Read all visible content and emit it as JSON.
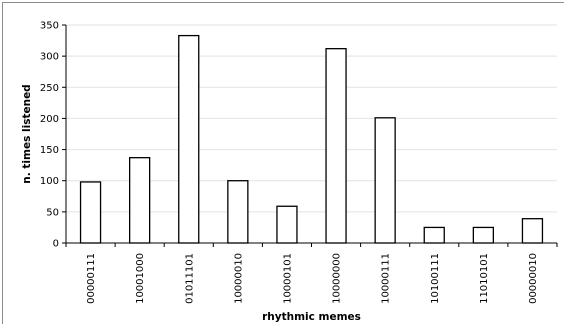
{
  "chart_data": {
    "type": "bar",
    "title": "",
    "xlabel": "rhythmic memes",
    "ylabel": "n. times listened",
    "categories": [
      "00000111",
      "10001000",
      "01011101",
      "10000010",
      "10000101",
      "10000000",
      "10000111",
      "10100111",
      "11010101",
      "00000010"
    ],
    "values": [
      98,
      137,
      333,
      100,
      59,
      312,
      201,
      25,
      25,
      39
    ],
    "ylim": [
      0,
      350
    ],
    "yticks": [
      0,
      50,
      100,
      150,
      200,
      250,
      300,
      350
    ],
    "grid": true,
    "legend": "none",
    "colors": {
      "bar_fill": "#ffffff",
      "bar_stroke": "#000000",
      "grid": "#e2e2e2"
    }
  }
}
